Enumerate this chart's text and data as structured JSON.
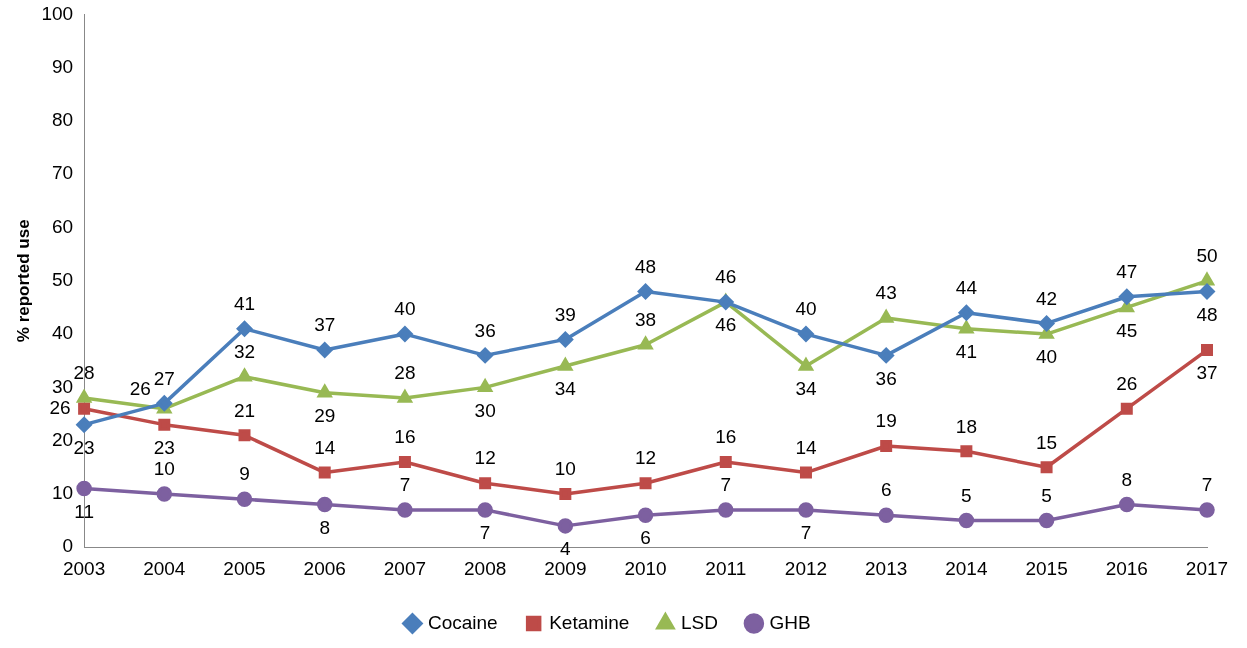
{
  "chart_data": {
    "type": "line",
    "ylabel": "% reported use",
    "categories": [
      "2003",
      "2004",
      "2005",
      "2006",
      "2007",
      "2008",
      "2009",
      "2010",
      "2011",
      "2012",
      "2013",
      "2014",
      "2015",
      "2016",
      "2017"
    ],
    "series": [
      {
        "name": "Cocaine",
        "color": "#4a7ebb",
        "marker": "diamond",
        "values": [
          23,
          27,
          41,
          37,
          40,
          36,
          39,
          48,
          46,
          40,
          36,
          44,
          42,
          47,
          48
        ]
      },
      {
        "name": "Ketamine",
        "color": "#be4b48",
        "marker": "square",
        "values": [
          26,
          23,
          21,
          14,
          16,
          12,
          10,
          12,
          16,
          14,
          19,
          18,
          15,
          26,
          37
        ]
      },
      {
        "name": "LSD",
        "color": "#98b954",
        "marker": "triangle",
        "values": [
          28,
          26,
          32,
          29,
          28,
          30,
          34,
          38,
          46,
          34,
          43,
          41,
          40,
          45,
          50
        ]
      },
      {
        "name": "GHB",
        "color": "#7d60a0",
        "marker": "circle",
        "values": [
          11,
          10,
          9,
          8,
          7,
          7,
          4,
          6,
          7,
          7,
          6,
          5,
          5,
          8,
          7
        ]
      }
    ],
    "ylim": [
      0,
      100
    ],
    "yticks": [
      0,
      10,
      20,
      30,
      40,
      50,
      60,
      70,
      80,
      90,
      100
    ],
    "grid": false,
    "legend": "bottom",
    "data_labels": true,
    "line_style": "solid"
  }
}
